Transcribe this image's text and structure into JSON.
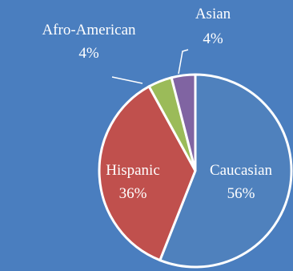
{
  "background": "#4a7ebf",
  "chart_data": {
    "type": "pie",
    "title": "",
    "slices": [
      {
        "name": "Caucasian",
        "value": 56,
        "label": "56%",
        "color": "#4f81bd"
      },
      {
        "name": "Hispanic",
        "value": 36,
        "label": "36%",
        "color": "#c0504d"
      },
      {
        "name": "Afro-American",
        "value": 4,
        "label": "4%",
        "color": "#9bbb59"
      },
      {
        "name": "Asian",
        "value": 4,
        "label": "4%",
        "color": "#8064a2"
      }
    ],
    "start_angle_deg": 0,
    "direction": "clockwise",
    "legend": "none",
    "labels": "category name and percentage"
  }
}
